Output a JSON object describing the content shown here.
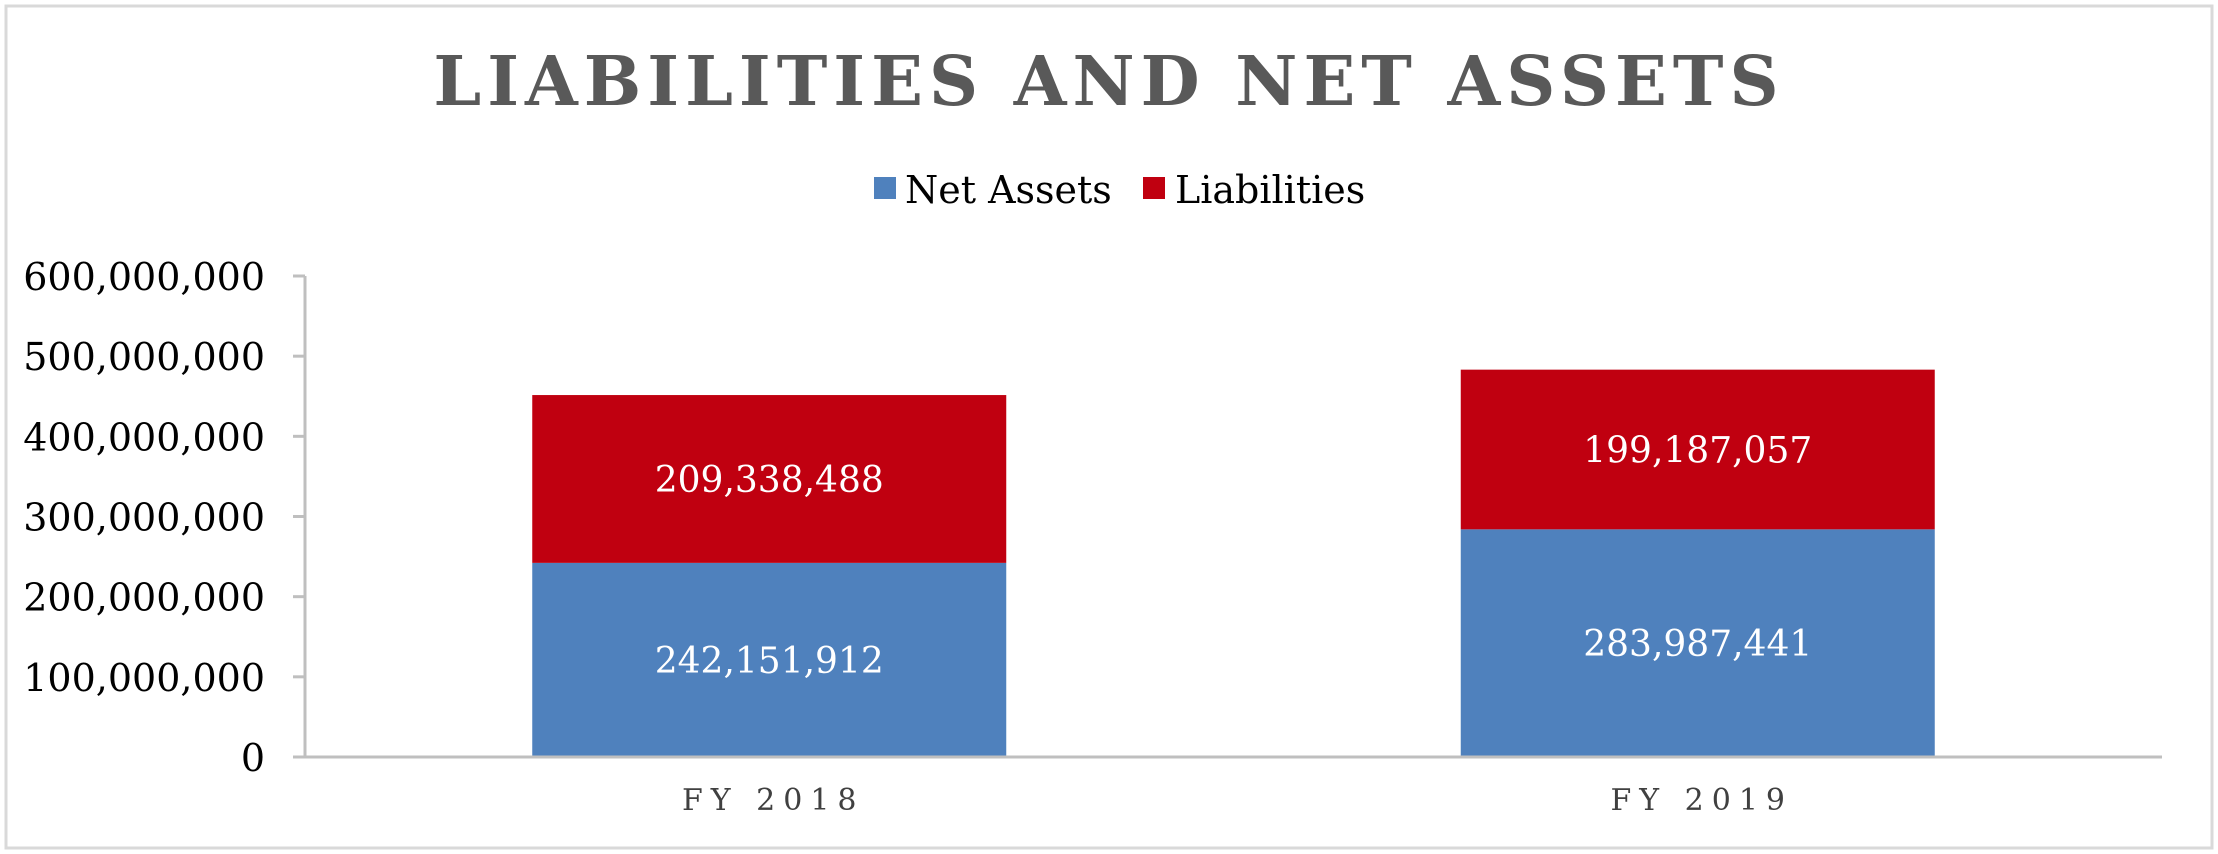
{
  "chart_data": {
    "type": "bar",
    "stacked": true,
    "title": "LIABILITIES AND NET ASSETS",
    "categories": [
      "FY 2018",
      "FY 2019"
    ],
    "series": [
      {
        "name": "Net Assets",
        "values": [
          242151912,
          283987441
        ],
        "labels": [
          "242,151,912",
          "283,987,441"
        ],
        "color": "#4f81bd"
      },
      {
        "name": "Liabilities",
        "values": [
          209338488,
          199187057
        ],
        "labels": [
          "209,338,488",
          "199,187,057"
        ],
        "color": "#c00010"
      }
    ],
    "ylim": [
      0,
      600000000
    ],
    "yticks": [
      0,
      100000000,
      200000000,
      300000000,
      400000000,
      500000000,
      600000000
    ],
    "ytick_labels": [
      "0",
      "100,000,000",
      "200,000,000",
      "300,000,000",
      "400,000,000",
      "500,000,000",
      "600,000,000"
    ],
    "xlabel": "",
    "ylabel": "",
    "grid": false,
    "legend_position": "top-center",
    "colors": {
      "title": "#595959",
      "text": "#000000",
      "category_text": "#404040",
      "data_label": "#ffffff",
      "axis": "#bfbfbf",
      "border": "#d9d9d9"
    }
  }
}
